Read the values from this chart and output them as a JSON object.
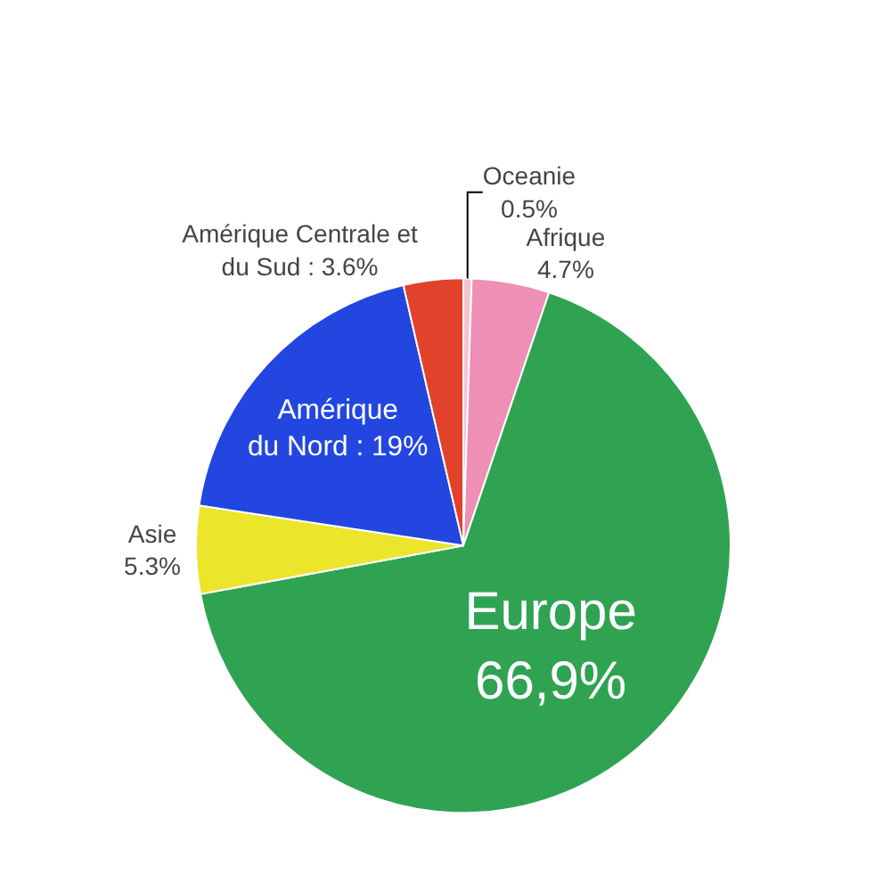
{
  "chart_data": {
    "type": "pie",
    "categories": [
      "Oceanie",
      "Afrique",
      "Europe",
      "Asie",
      "Amérique\ndu Nord",
      "Amérique Centrale et\ndu Sud"
    ],
    "values": [
      0.5,
      4.7,
      66.9,
      5.3,
      19,
      3.6
    ],
    "value_labels": [
      "0.5%",
      "4.7%",
      "66,9%",
      "5.3%",
      "19%",
      "3.6%"
    ],
    "colors": [
      "#f2c4d2",
      "#ee8fb5",
      "#2fa352",
      "#ebe52b",
      "#2346e0",
      "#e2412b"
    ],
    "legend": false
  }
}
